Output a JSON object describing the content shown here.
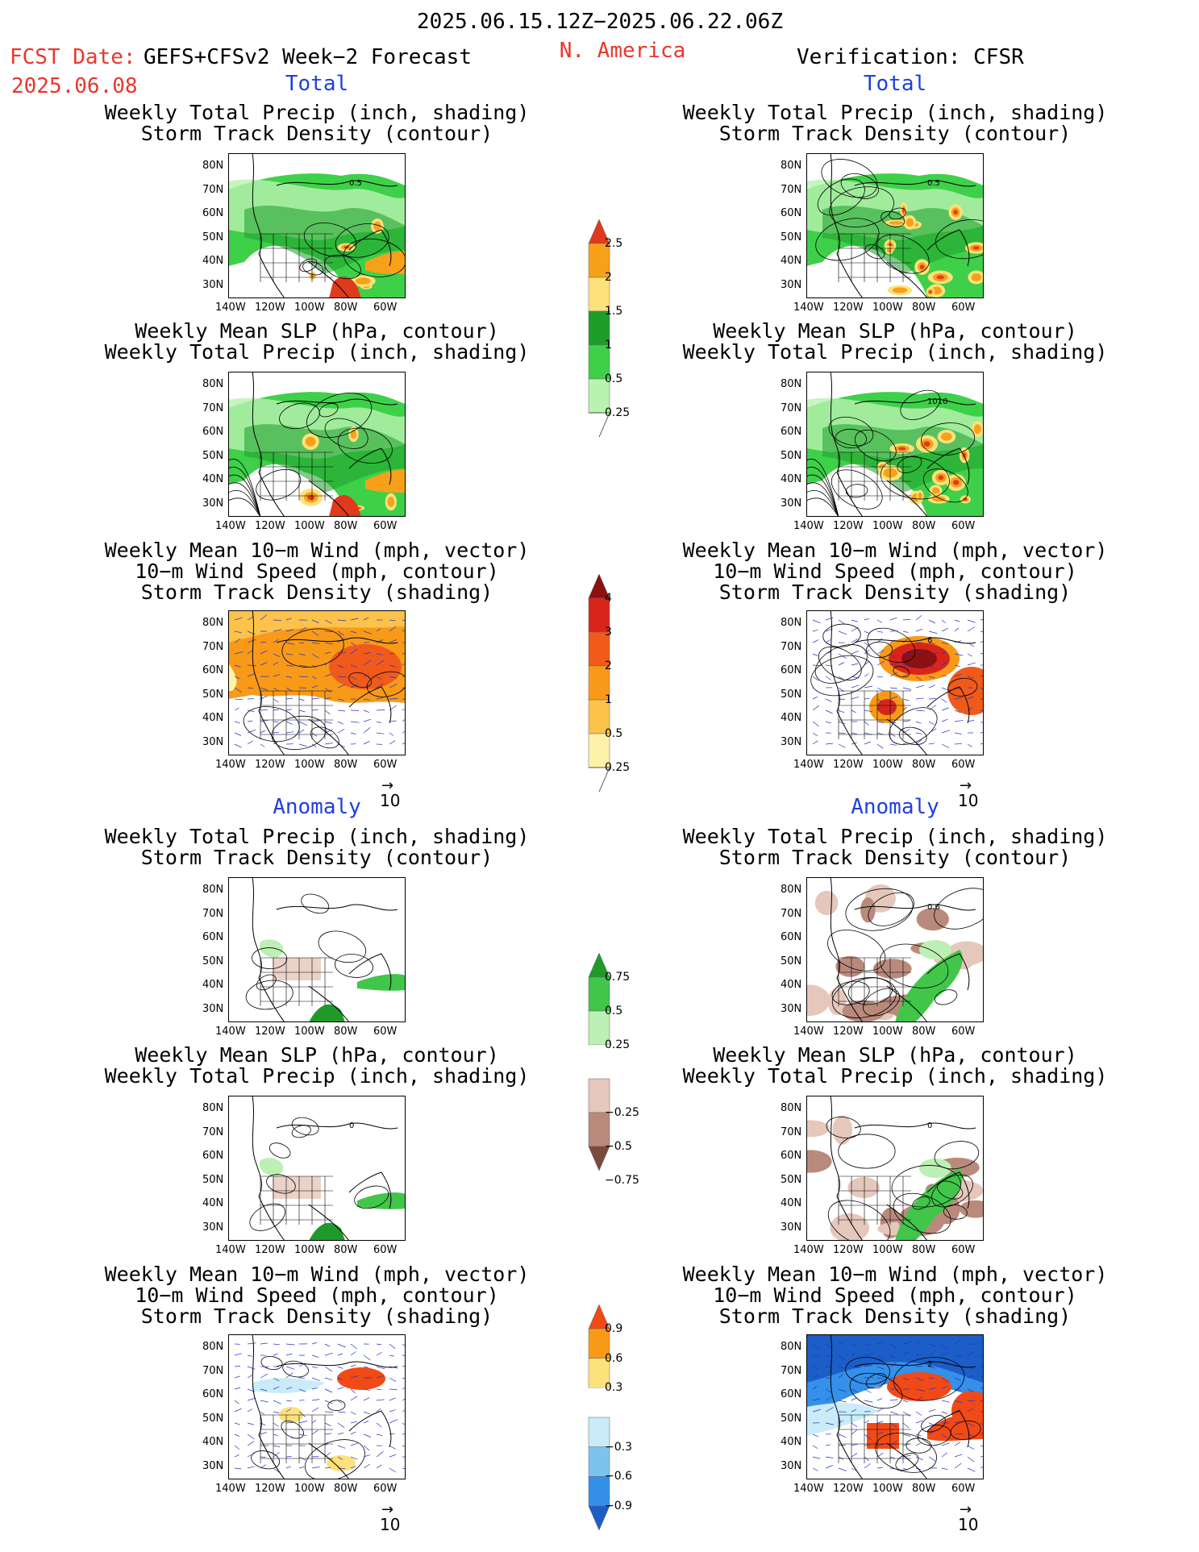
{
  "header": {
    "period": "2025.06.15.12Z−2025.06.22.06Z",
    "region": "N. America",
    "fcst_label": "FCST Date:",
    "fcst_date": "2025.06.08",
    "model": "GEFS+CFSv2 Week−2 Forecast",
    "verification": "Verification: CFSR"
  },
  "sections": {
    "total": "Total",
    "anomaly": "Anomaly"
  },
  "panel_titles": {
    "precip_storm": [
      "Weekly Total Precip (inch, shading)",
      "Storm Track Density (contour)"
    ],
    "slp_precip": [
      "Weekly Mean SLP (hPa, contour)",
      "Weekly Total Precip (inch, shading)"
    ],
    "wind_storm": [
      "Weekly Mean 10−m Wind (mph, vector)",
      "10−m Wind Speed (mph, contour)",
      "Storm Track Density (shading)"
    ]
  },
  "axes": {
    "lat_ticks": [
      "80N",
      "70N",
      "60N",
      "50N",
      "40N",
      "30N"
    ],
    "lon_ticks": [
      "140W",
      "120W",
      "100W",
      "80W",
      "60W"
    ]
  },
  "vector_ref": "10",
  "colorbars": [
    {
      "id": "total_precip",
      "labels": [
        "2.5",
        "2",
        "1.5",
        "1",
        "0.5",
        "0.25"
      ],
      "colors": [
        "#e03a1c",
        "#f7a11a",
        "#fde17a",
        "#1d9e2a",
        "#3fd04a",
        "#b9f3b0"
      ]
    },
    {
      "id": "total_storm",
      "labels": [
        "4",
        "3",
        "2",
        "1",
        "0.5",
        "0.25"
      ],
      "colors": [
        "#8c1010",
        "#d8251b",
        "#f05a1a",
        "#f89a18",
        "#fcc24a",
        "#fdf2a8"
      ]
    },
    {
      "id": "anom_precip",
      "labels": [
        "0.75",
        "0.5",
        "0.25",
        "−0.25",
        "−0.5",
        "−0.75"
      ],
      "colors": [
        "#1f9a2a",
        "#41c64a",
        "#bdf0b4",
        "#ffffff",
        "#e5c7bb",
        "#b98a7c",
        "#7a4a3c"
      ]
    },
    {
      "id": "anom_storm",
      "labels": [
        "0.9",
        "0.6",
        "0.3",
        "−0.3",
        "−0.6",
        "−0.9"
      ],
      "colors": [
        "#f14a17",
        "#f89a18",
        "#fde17a",
        "#ffffff",
        "#c9ecf8",
        "#7cc4f0",
        "#3490e8",
        "#1c5ec8"
      ]
    }
  ],
  "panels": [
    {
      "id": "fc-total-precip",
      "style": "precip",
      "shade": "green",
      "label": "0.5"
    },
    {
      "id": "vf-total-precip",
      "style": "precip-vf",
      "shade": "green",
      "label": "0.5"
    },
    {
      "id": "fc-total-slp",
      "style": "slp",
      "shade": "green",
      "label": ""
    },
    {
      "id": "vf-total-slp",
      "style": "slp-vf",
      "shade": "green",
      "label": "1010"
    },
    {
      "id": "fc-total-wind",
      "style": "wind",
      "shade": "orange",
      "label": ""
    },
    {
      "id": "vf-total-wind",
      "style": "wind-vf",
      "shade": "orange",
      "label": "6"
    },
    {
      "id": "fc-anom-precip",
      "style": "anom",
      "shade": "light",
      "label": ""
    },
    {
      "id": "vf-anom-precip",
      "style": "anom-vf",
      "shade": "mixed",
      "label": "0.6"
    },
    {
      "id": "fc-anom-slp",
      "style": "anom",
      "shade": "light",
      "label": "0"
    },
    {
      "id": "vf-anom-slp",
      "style": "anom-vf",
      "shade": "mixed",
      "label": "0"
    },
    {
      "id": "fc-anom-wind",
      "style": "wind-anom",
      "shade": "smallorange",
      "label": ""
    },
    {
      "id": "vf-anom-wind",
      "style": "wind-anom-vf",
      "shade": "bluered",
      "label": "2"
    }
  ]
}
